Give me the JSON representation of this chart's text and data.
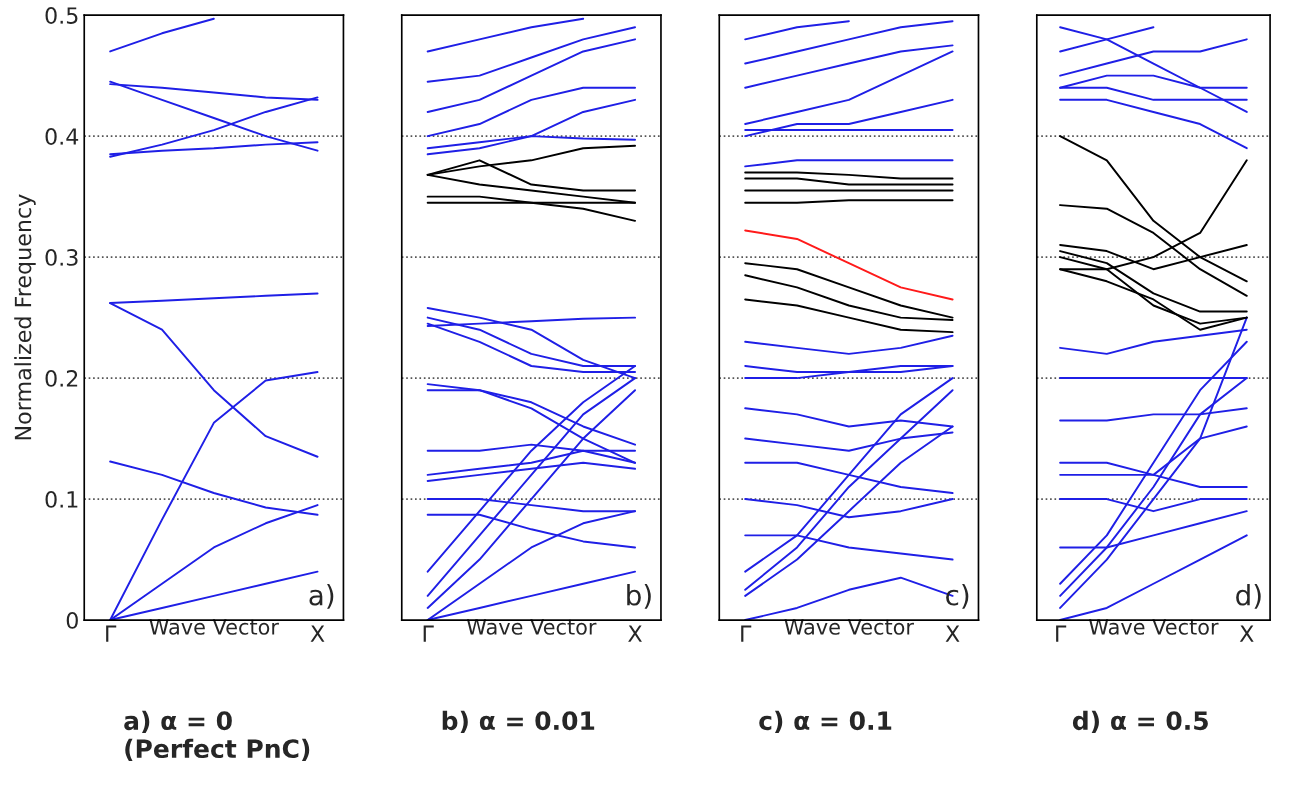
{
  "chart_data": [
    {
      "type": "line",
      "ylabel": "Normalized Frequency",
      "xlabel": "Wave Vector",
      "categories": [
        "Γ",
        null,
        null,
        null,
        "X"
      ],
      "ylim": [
        0,
        0.5
      ],
      "yticks": [
        0,
        0.1,
        0.2,
        0.3,
        0.4,
        0.5
      ],
      "grid": "y",
      "marker": "none",
      "line_style": "solid",
      "annotations": [
        "a)",
        "a) α = 0\n(Perfect PnC)"
      ],
      "series": [
        {
          "color": "#1f1fe6",
          "values": [
            0,
            0.01,
            0.02,
            0.03,
            0.04
          ]
        },
        {
          "color": "#1f1fe6",
          "values": [
            0,
            0.03,
            0.06,
            0.08,
            0.095
          ]
        },
        {
          "color": "#1f1fe6",
          "values": [
            0,
            0.083,
            0.163,
            0.198,
            0.205
          ]
        },
        {
          "color": "#1f1fe6",
          "values": [
            0.262,
            0.24,
            0.19,
            0.152,
            0.135
          ]
        },
        {
          "color": "#1f1fe6",
          "values": [
            0.131,
            0.12,
            0.105,
            0.093,
            0.087
          ]
        },
        {
          "color": "#1f1fe6",
          "values": [
            0.262,
            0.264,
            0.266,
            0.268,
            0.27
          ]
        },
        {
          "color": "#1f1fe6",
          "values": [
            0.383,
            0.393,
            0.405,
            0.42,
            0.432
          ]
        },
        {
          "color": "#1f1fe6",
          "values": [
            0.445,
            0.43,
            0.415,
            0.4,
            0.388
          ]
        },
        {
          "color": "#1f1fe6",
          "values": [
            0.443,
            0.44,
            0.436,
            0.432,
            0.43
          ]
        },
        {
          "color": "#1f1fe6",
          "values": [
            0.385,
            0.388,
            0.39,
            0.393,
            0.395
          ]
        },
        {
          "color": "#1f1fe6",
          "values": [
            0.47,
            0.485,
            0.497,
            null,
            null
          ]
        }
      ]
    },
    {
      "type": "line",
      "xlabel": "Wave Vector",
      "categories": [
        "Γ",
        null,
        null,
        null,
        "X"
      ],
      "ylim": [
        0,
        0.5
      ],
      "yticks": [
        0,
        0.1,
        0.2,
        0.3,
        0.4,
        0.5
      ],
      "tick_labels": "x",
      "grid": "y",
      "marker": "none",
      "line_style": "solid",
      "annotations": [
        "b)",
        "b) α = 0.01"
      ],
      "series": [
        {
          "color": "#1f1fe6",
          "values": [
            0,
            0.01,
            0.02,
            0.03,
            0.04
          ]
        },
        {
          "color": "#1f1fe6",
          "values": [
            0,
            0.03,
            0.06,
            0.08,
            0.09
          ]
        },
        {
          "color": "#1f1fe6",
          "values": [
            0.02,
            0.07,
            0.12,
            0.17,
            0.2
          ]
        },
        {
          "color": "#1f1fe6",
          "values": [
            0.04,
            0.09,
            0.14,
            0.18,
            0.21
          ]
        },
        {
          "color": "#1f1fe6",
          "values": [
            0.01,
            0.05,
            0.1,
            0.15,
            0.19
          ]
        },
        {
          "color": "#1f1fe6",
          "values": [
            0.087,
            0.087,
            0.075,
            0.065,
            0.06
          ]
        },
        {
          "color": "#1f1fe6",
          "values": [
            0.1,
            0.1,
            0.095,
            0.09,
            0.09
          ]
        },
        {
          "color": "#1f1fe6",
          "values": [
            0.12,
            0.125,
            0.13,
            0.14,
            0.13
          ]
        },
        {
          "color": "#1f1fe6",
          "values": [
            0.14,
            0.14,
            0.145,
            0.14,
            0.14
          ]
        },
        {
          "color": "#1f1fe6",
          "values": [
            0.115,
            0.12,
            0.125,
            0.13,
            0.125
          ]
        },
        {
          "color": "#1f1fe6",
          "values": [
            0.19,
            0.19,
            0.175,
            0.15,
            0.13
          ]
        },
        {
          "color": "#1f1fe6",
          "values": [
            0.195,
            0.19,
            0.18,
            0.16,
            0.145
          ]
        },
        {
          "color": "#1f1fe6",
          "values": [
            0.245,
            0.23,
            0.21,
            0.205,
            0.205
          ]
        },
        {
          "color": "#1f1fe6",
          "values": [
            0.25,
            0.24,
            0.22,
            0.21,
            0.21
          ]
        },
        {
          "color": "#1f1fe6",
          "values": [
            0.258,
            0.25,
            0.24,
            0.215,
            0.2
          ]
        },
        {
          "color": "#1f1fe6",
          "values": [
            0.243,
            0.245,
            0.247,
            0.249,
            0.25
          ]
        },
        {
          "color": "#000000",
          "values": [
            0.345,
            0.345,
            0.345,
            0.345,
            0.345
          ]
        },
        {
          "color": "#000000",
          "values": [
            0.35,
            0.35,
            0.345,
            0.34,
            0.33
          ]
        },
        {
          "color": "#000000",
          "values": [
            0.368,
            0.36,
            0.355,
            0.35,
            0.345
          ]
        },
        {
          "color": "#000000",
          "values": [
            0.368,
            0.375,
            0.38,
            0.39,
            0.392
          ]
        },
        {
          "color": "#000000",
          "values": [
            0.368,
            0.38,
            0.36,
            0.355,
            0.355
          ]
        },
        {
          "color": "#1f1fe6",
          "values": [
            0.39,
            0.395,
            0.4,
            0.398,
            0.397
          ]
        },
        {
          "color": "#1f1fe6",
          "values": [
            0.385,
            0.39,
            0.4,
            0.42,
            0.43
          ]
        },
        {
          "color": "#1f1fe6",
          "values": [
            0.4,
            0.41,
            0.43,
            0.44,
            0.44
          ]
        },
        {
          "color": "#1f1fe6",
          "values": [
            0.42,
            0.43,
            0.45,
            0.47,
            0.48
          ]
        },
        {
          "color": "#1f1fe6",
          "values": [
            0.445,
            0.45,
            0.465,
            0.48,
            0.49
          ]
        },
        {
          "color": "#1f1fe6",
          "values": [
            0.47,
            0.48,
            0.49,
            0.497,
            null
          ]
        }
      ]
    },
    {
      "type": "line",
      "xlabel": "Wave Vector",
      "categories": [
        "Γ",
        null,
        null,
        null,
        "X"
      ],
      "ylim": [
        0,
        0.5
      ],
      "yticks": [
        0,
        0.1,
        0.2,
        0.3,
        0.4,
        0.5
      ],
      "tick_labels": "x",
      "grid": "y",
      "marker": "none",
      "line_style": "solid",
      "annotations": [
        "c)",
        "c) α = 0.1"
      ],
      "series": [
        {
          "color": "#1f1fe6",
          "values": [
            0,
            0.01,
            0.025,
            0.035,
            0.02
          ]
        },
        {
          "color": "#1f1fe6",
          "values": [
            0.02,
            0.05,
            0.09,
            0.13,
            0.16
          ]
        },
        {
          "color": "#1f1fe6",
          "values": [
            0.04,
            0.07,
            0.12,
            0.17,
            0.2
          ]
        },
        {
          "color": "#1f1fe6",
          "values": [
            0.025,
            0.06,
            0.11,
            0.15,
            0.19
          ]
        },
        {
          "color": "#1f1fe6",
          "values": [
            0.1,
            0.095,
            0.085,
            0.09,
            0.1
          ]
        },
        {
          "color": "#1f1fe6",
          "values": [
            0.13,
            0.13,
            0.12,
            0.11,
            0.105
          ]
        },
        {
          "color": "#1f1fe6",
          "values": [
            0.15,
            0.145,
            0.14,
            0.15,
            0.155
          ]
        },
        {
          "color": "#1f1fe6",
          "values": [
            0.175,
            0.17,
            0.16,
            0.165,
            0.16
          ]
        },
        {
          "color": "#1f1fe6",
          "values": [
            0.2,
            0.2,
            0.205,
            0.21,
            0.21
          ]
        },
        {
          "color": "#1f1fe6",
          "values": [
            0.21,
            0.205,
            0.205,
            0.205,
            0.21
          ]
        },
        {
          "color": "#1f1fe6",
          "values": [
            0.23,
            0.225,
            0.22,
            0.225,
            0.235
          ]
        },
        {
          "color": "#1f1fe6",
          "values": [
            0.07,
            0.07,
            0.06,
            0.055,
            0.05
          ]
        },
        {
          "color": "#000000",
          "values": [
            0.295,
            0.29,
            0.275,
            0.26,
            0.25
          ]
        },
        {
          "color": "#000000",
          "values": [
            0.285,
            0.275,
            0.26,
            0.25,
            0.248
          ]
        },
        {
          "color": "#000000",
          "values": [
            0.265,
            0.26,
            0.25,
            0.24,
            0.238
          ]
        },
        {
          "color": "#000000",
          "values": [
            0.345,
            0.345,
            0.347,
            0.347,
            0.347
          ]
        },
        {
          "color": "#000000",
          "values": [
            0.355,
            0.355,
            0.355,
            0.355,
            0.355
          ]
        },
        {
          "color": "#000000",
          "values": [
            0.365,
            0.365,
            0.36,
            0.36,
            0.36
          ]
        },
        {
          "color": "#000000",
          "values": [
            0.37,
            0.37,
            0.368,
            0.365,
            0.365
          ]
        },
        {
          "color": "#ff1a1a",
          "values": [
            0.322,
            0.315,
            0.295,
            0.275,
            0.265
          ]
        },
        {
          "color": "#1f1fe6",
          "values": [
            0.375,
            0.38,
            0.38,
            0.38,
            0.38
          ]
        },
        {
          "color": "#1f1fe6",
          "values": [
            0.405,
            0.405,
            0.405,
            0.405,
            0.405
          ]
        },
        {
          "color": "#1f1fe6",
          "values": [
            0.41,
            0.42,
            0.43,
            0.45,
            0.47
          ]
        },
        {
          "color": "#1f1fe6",
          "values": [
            0.44,
            0.45,
            0.46,
            0.47,
            0.475
          ]
        },
        {
          "color": "#1f1fe6",
          "values": [
            0.46,
            0.47,
            0.48,
            0.49,
            0.495
          ]
        },
        {
          "color": "#1f1fe6",
          "values": [
            0.48,
            0.49,
            0.495,
            null,
            null
          ]
        },
        {
          "color": "#1f1fe6",
          "values": [
            0.4,
            0.41,
            0.41,
            0.42,
            0.43
          ]
        }
      ]
    },
    {
      "type": "line",
      "xlabel": "Wave Vector",
      "categories": [
        "Γ",
        null,
        null,
        null,
        "X"
      ],
      "ylim": [
        0,
        0.5
      ],
      "yticks": [
        0,
        0.1,
        0.2,
        0.3,
        0.4,
        0.5
      ],
      "tick_labels": "x",
      "grid": "y",
      "marker": "none",
      "line_style": "solid",
      "annotations": [
        "d)",
        "d) α = 0.5"
      ],
      "series": [
        {
          "color": "#1f1fe6",
          "values": [
            0,
            0.01,
            0.03,
            0.05,
            0.07
          ]
        },
        {
          "color": "#1f1fe6",
          "values": [
            0.02,
            0.06,
            0.11,
            0.17,
            0.2
          ]
        },
        {
          "color": "#1f1fe6",
          "values": [
            0.03,
            0.07,
            0.13,
            0.19,
            0.23
          ]
        },
        {
          "color": "#1f1fe6",
          "values": [
            0.01,
            0.05,
            0.1,
            0.15,
            0.25
          ]
        },
        {
          "color": "#1f1fe6",
          "values": [
            0.1,
            0.1,
            0.09,
            0.1,
            0.1
          ]
        },
        {
          "color": "#1f1fe6",
          "values": [
            0.12,
            0.12,
            0.12,
            0.15,
            0.16
          ]
        },
        {
          "color": "#1f1fe6",
          "values": [
            0.165,
            0.165,
            0.17,
            0.17,
            0.175
          ]
        },
        {
          "color": "#1f1fe6",
          "values": [
            0.2,
            0.2,
            0.2,
            0.2,
            0.2
          ]
        },
        {
          "color": "#1f1fe6",
          "values": [
            0.225,
            0.22,
            0.23,
            0.235,
            0.24
          ]
        },
        {
          "color": "#1f1fe6",
          "values": [
            0.06,
            0.06,
            0.07,
            0.08,
            0.09
          ]
        },
        {
          "color": "#1f1fe6",
          "values": [
            0.13,
            0.13,
            0.12,
            0.11,
            0.11
          ]
        },
        {
          "color": "#000000",
          "values": [
            0.4,
            0.38,
            0.33,
            0.3,
            0.28
          ]
        },
        {
          "color": "#000000",
          "values": [
            0.343,
            0.34,
            0.32,
            0.29,
            0.268
          ]
        },
        {
          "color": "#000000",
          "values": [
            0.31,
            0.305,
            0.29,
            0.3,
            0.31
          ]
        },
        {
          "color": "#000000",
          "values": [
            0.305,
            0.295,
            0.27,
            0.255,
            0.255
          ]
        },
        {
          "color": "#000000",
          "values": [
            0.3,
            0.29,
            0.26,
            0.245,
            0.25
          ]
        },
        {
          "color": "#000000",
          "values": [
            0.29,
            0.28,
            0.265,
            0.24,
            0.25
          ]
        },
        {
          "color": "#000000",
          "values": [
            0.29,
            0.29,
            0.3,
            0.32,
            0.38
          ]
        },
        {
          "color": "#1f1fe6",
          "values": [
            0.43,
            0.43,
            0.42,
            0.41,
            0.39
          ]
        },
        {
          "color": "#1f1fe6",
          "values": [
            0.44,
            0.44,
            0.43,
            0.43,
            0.43
          ]
        },
        {
          "color": "#1f1fe6",
          "values": [
            0.45,
            0.46,
            0.47,
            0.47,
            0.48
          ]
        },
        {
          "color": "#1f1fe6",
          "values": [
            0.47,
            0.48,
            0.49,
            null,
            null
          ]
        },
        {
          "color": "#1f1fe6",
          "values": [
            0.49,
            0.48,
            0.46,
            0.44,
            0.42
          ]
        },
        {
          "color": "#1f1fe6",
          "values": [
            0.44,
            0.45,
            0.45,
            0.44,
            0.44
          ]
        }
      ]
    }
  ]
}
